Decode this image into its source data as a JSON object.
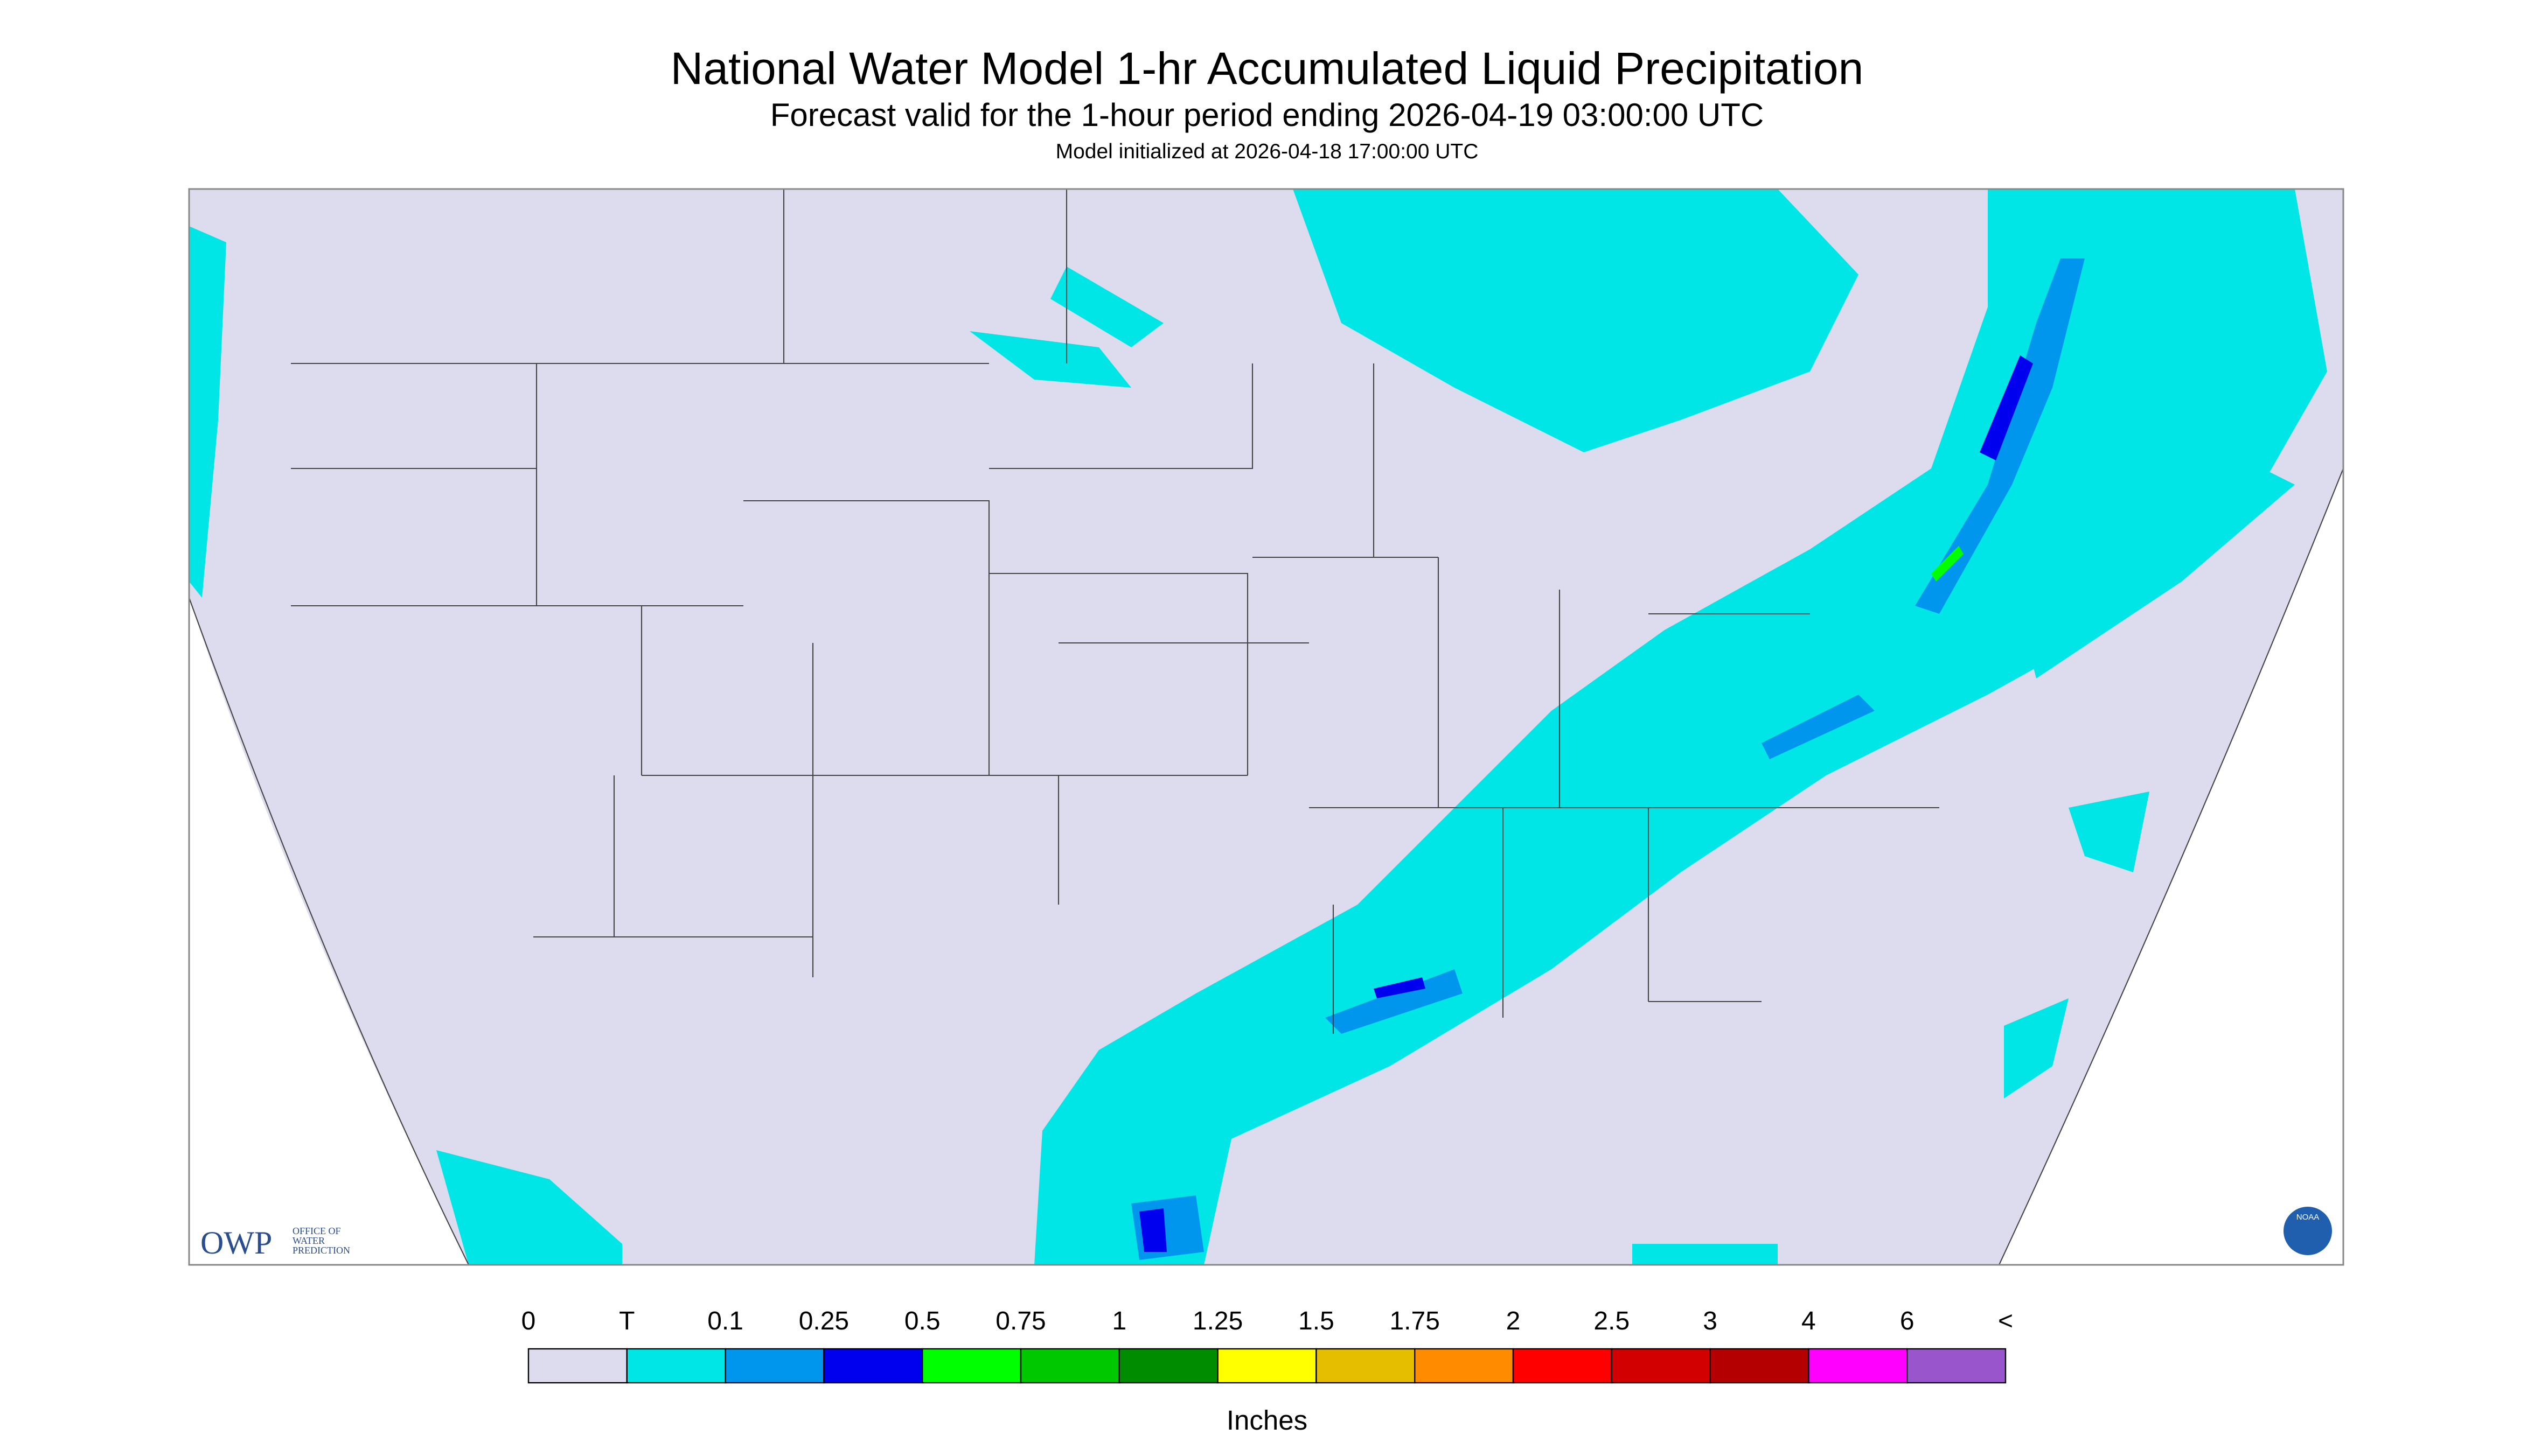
{
  "header": {
    "title": "National Water Model 1-hr Accumulated Liquid Precipitation",
    "subtitle": "Forecast valid for the 1-hour period ending 2026-04-19 03:00:00 UTC",
    "init": "Model initialized at 2026-04-18 17:00:00 UTC"
  },
  "logo": {
    "owp": "OWP",
    "org": [
      "OFFICE OF",
      "WATER",
      "PREDICTION"
    ],
    "noaa": "NOAA"
  },
  "legend": {
    "labels": [
      "0",
      "T",
      "0.1",
      "0.25",
      "0.5",
      "0.75",
      "1",
      "1.25",
      "1.5",
      "1.75",
      "2",
      "2.5",
      "3",
      "4",
      "6",
      "<"
    ],
    "colors": [
      "#dcdcee",
      "#00e6e6",
      "#0096ee",
      "#0000ee",
      "#00ff00",
      "#00c800",
      "#008c00",
      "#ffff00",
      "#e6be00",
      "#ff8c00",
      "#ff0000",
      "#d20000",
      "#b40000",
      "#ff00ff",
      "#9955cc"
    ],
    "unit": "Inches"
  }
}
